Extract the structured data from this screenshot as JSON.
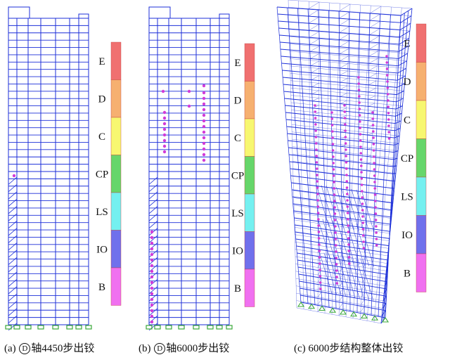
{
  "panels": [
    {
      "id": "a",
      "caption": {
        "prefix": "(a)",
        "axis_symbol": "D",
        "text": "轴4450步出铰"
      },
      "legend": [
        "E",
        "D",
        "C",
        "CP",
        "LS",
        "IO",
        "B"
      ]
    },
    {
      "id": "b",
      "caption": {
        "prefix": "(b)",
        "axis_symbol": "D",
        "text": "轴6000步出铰"
      },
      "legend": [
        "E",
        "D",
        "C",
        "CP",
        "LS",
        "IO",
        "B"
      ]
    },
    {
      "id": "c",
      "caption": {
        "prefix": "(c)",
        "axis_symbol": "",
        "text": "6000步结构整体出铰"
      },
      "legend": [
        "E",
        "D",
        "C",
        "CP",
        "LS",
        "IO",
        "B"
      ]
    }
  ],
  "legend_colors": [
    "#f07070",
    "#f6b070",
    "#f7f770",
    "#66d66a",
    "#74f0f0",
    "#7070ec",
    "#f070f0"
  ],
  "frame_color": "#1c2fd8",
  "hinge_color": "#d23ad8",
  "support_color": "#3aa83a"
}
